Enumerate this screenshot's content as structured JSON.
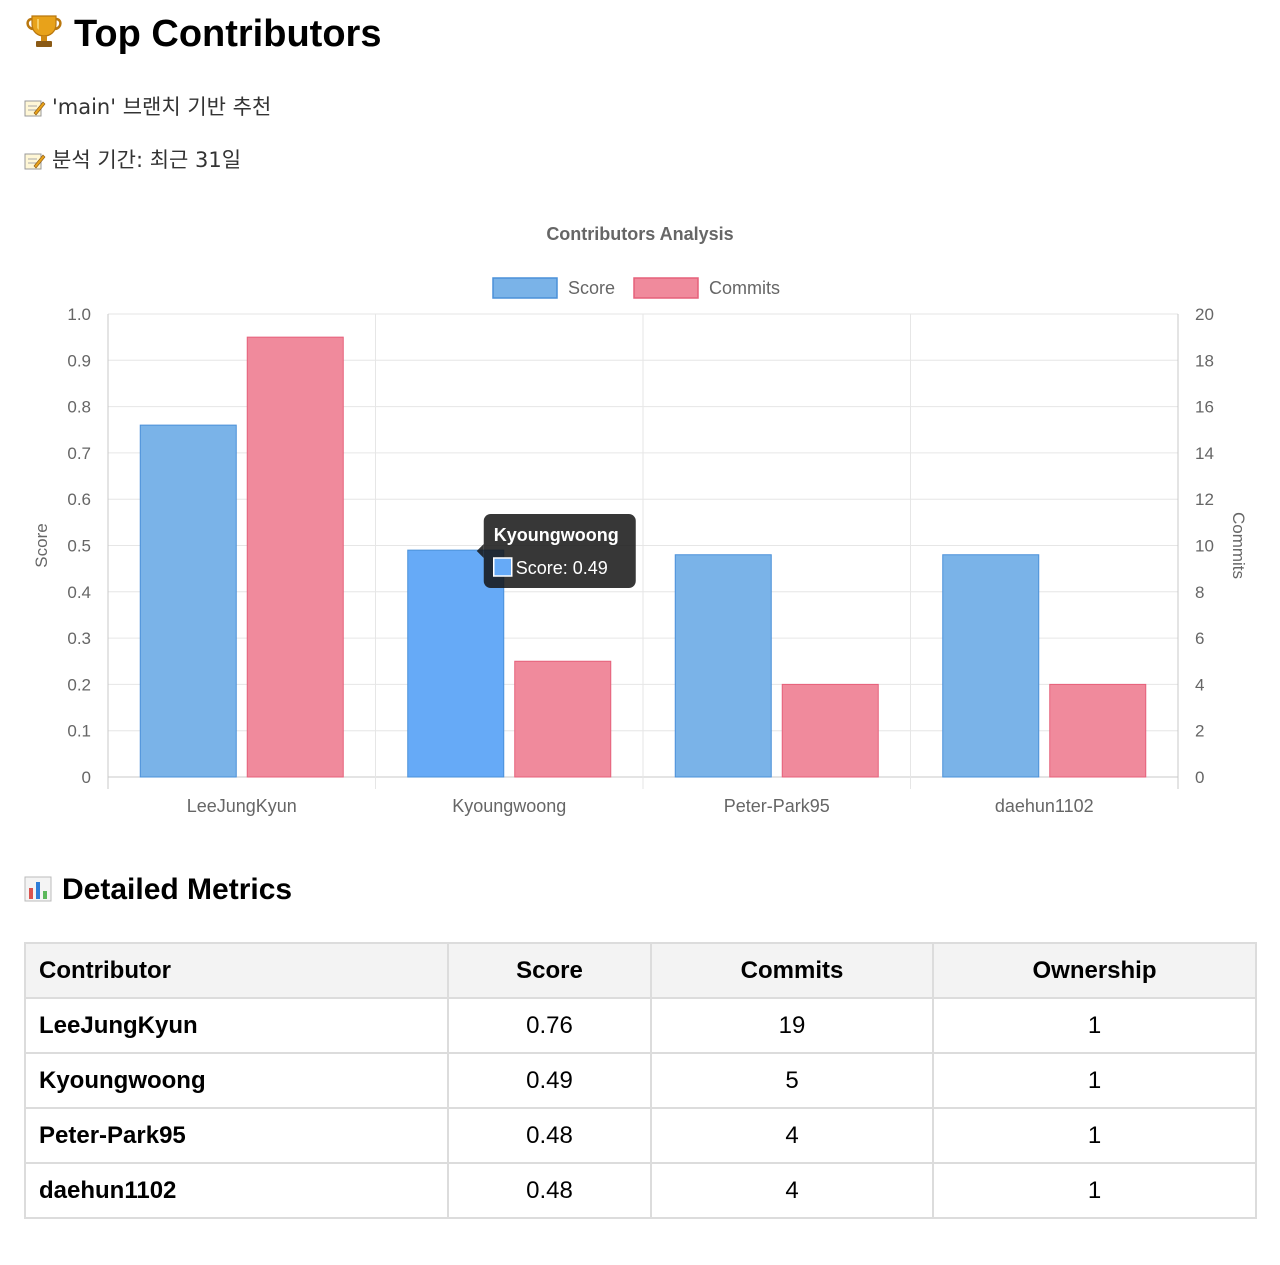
{
  "header": {
    "title": "Top Contributors",
    "icon": "trophy-icon",
    "notes": [
      {
        "icon": "memo-icon",
        "text": "'main' 브랜치 기반 추천"
      },
      {
        "icon": "memo-icon",
        "text": "분석 기간: 최근 31일"
      }
    ]
  },
  "chart_data": {
    "type": "bar",
    "title": "Contributors Analysis",
    "categories": [
      "LeeJungKyun",
      "Kyoungwoong",
      "Peter-Park95",
      "daehun1102"
    ],
    "series": [
      {
        "name": "Score",
        "values": [
          0.76,
          0.49,
          0.48,
          0.48
        ],
        "axis": "left",
        "color": "#7ab3e8",
        "border": "#4a90d9"
      },
      {
        "name": "Commits",
        "values": [
          19,
          5,
          4,
          4
        ],
        "axis": "right",
        "color": "#f08a9c",
        "border": "#e6607a"
      }
    ],
    "y_left": {
      "label": "Score",
      "min": 0,
      "max": 1.0,
      "ticks": [
        "0",
        "0.1",
        "0.2",
        "0.3",
        "0.4",
        "0.5",
        "0.6",
        "0.7",
        "0.8",
        "0.9",
        "1.0"
      ]
    },
    "y_right": {
      "label": "Commits",
      "min": 0,
      "max": 20,
      "ticks": [
        "0",
        "2",
        "4",
        "6",
        "8",
        "10",
        "12",
        "14",
        "16",
        "18",
        "20"
      ]
    },
    "legend": "top-center",
    "grid": true,
    "tooltip": {
      "category": "Kyoungwoong",
      "label": "Score: 0.49",
      "highlight_color": "#66aaf7"
    }
  },
  "metrics": {
    "title": "Detailed Metrics",
    "icon": "bar-chart-icon",
    "columns": [
      "Contributor",
      "Score",
      "Commits",
      "Ownership"
    ],
    "rows": [
      [
        "LeeJungKyun",
        "0.76",
        "19",
        "1"
      ],
      [
        "Kyoungwoong",
        "0.49",
        "5",
        "1"
      ],
      [
        "Peter-Park95",
        "0.48",
        "4",
        "1"
      ],
      [
        "daehun1102",
        "0.48",
        "4",
        "1"
      ]
    ]
  }
}
